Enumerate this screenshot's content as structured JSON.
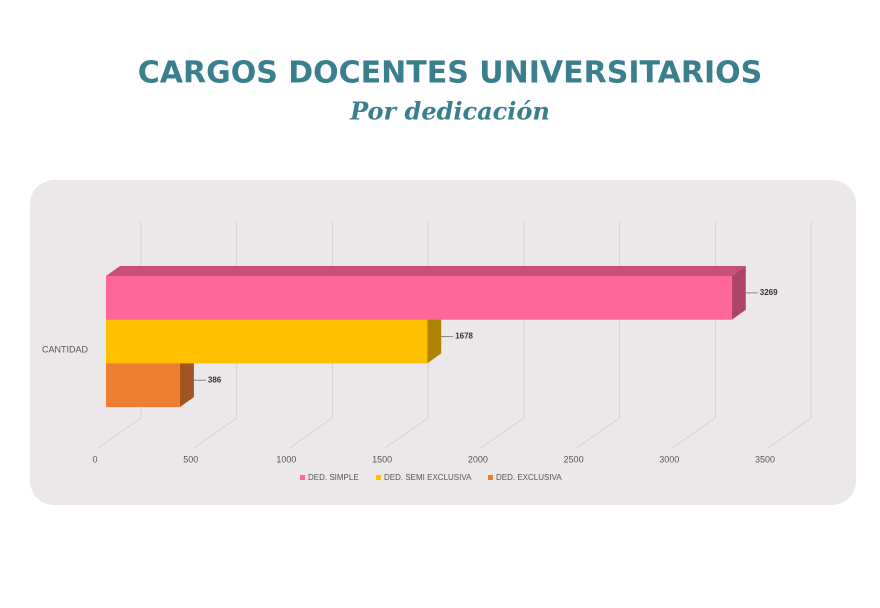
{
  "chart_data": {
    "type": "bar3d",
    "title": "CARGOS DOCENTES UNIVERSITARIOS",
    "subtitle": "Por dedicación",
    "categories": [
      "CANTIDAD"
    ],
    "series": [
      {
        "name": "DED. SIMPLE",
        "color": "#ff6699",
        "values": [
          3269
        ]
      },
      {
        "name": "DED. SEMI EXCLUSIVA",
        "color": "#ffc000",
        "values": [
          1678
        ]
      },
      {
        "name": "DED. EXCLUSIVA",
        "color": "#ed7d31",
        "values": [
          386
        ]
      }
    ],
    "xlim": [
      0,
      3500
    ],
    "xticks": [
      0,
      500,
      1000,
      1500,
      2000,
      2500,
      3000,
      3500
    ],
    "grid": true
  }
}
